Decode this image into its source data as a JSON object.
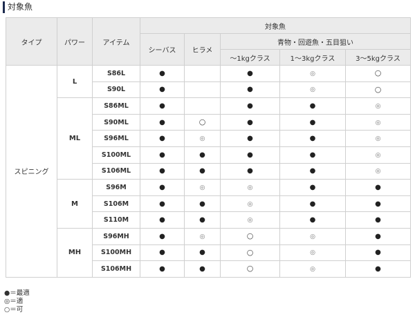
{
  "section_title": "対象魚",
  "header": {
    "type": "タイプ",
    "power": "パワー",
    "item": "アイテム",
    "target": "対象魚",
    "seabass": "シーバス",
    "hirame": "ヒラメ",
    "aomono": "青物・回遊魚・五目狙い",
    "c1": "～1kgクラス",
    "c2": "1～3kgクラス",
    "c3": "3～5kgクラス"
  },
  "symbols": {
    "best": "●",
    "good": "◎",
    "ok": "○"
  },
  "type_label": "スピニング",
  "groups": [
    {
      "power": "L",
      "rows": [
        [
          "S86L",
          "best",
          "",
          "best",
          "good",
          "ok"
        ],
        [
          "S90L",
          "best",
          "",
          "best",
          "good",
          "ok"
        ]
      ]
    },
    {
      "power": "ML",
      "rows": [
        [
          "S86ML",
          "best",
          "",
          "best",
          "best",
          "good"
        ],
        [
          "S90ML",
          "best",
          "ok",
          "best",
          "best",
          "good"
        ],
        [
          "S96ML",
          "best",
          "good",
          "best",
          "best",
          "good"
        ],
        [
          "S100ML",
          "best",
          "best",
          "best",
          "best",
          "good"
        ],
        [
          "S106ML",
          "best",
          "best",
          "best",
          "best",
          "good"
        ]
      ]
    },
    {
      "power": "M",
      "rows": [
        [
          "S96M",
          "best",
          "good",
          "good",
          "best",
          "best"
        ],
        [
          "S106M",
          "best",
          "best",
          "good",
          "best",
          "best"
        ],
        [
          "S110M",
          "best",
          "best",
          "good",
          "best",
          "best"
        ]
      ]
    },
    {
      "power": "MH",
      "rows": [
        [
          "S96MH",
          "best",
          "good",
          "ok",
          "good",
          "best"
        ],
        [
          "S100MH",
          "best",
          "best",
          "ok",
          "good",
          "best"
        ],
        [
          "S106MH",
          "best",
          "best",
          "ok",
          "good",
          "best"
        ]
      ]
    }
  ],
  "legend": [
    {
      "sym": "●",
      "text": "＝最適"
    },
    {
      "sym": "◎",
      "text": "＝適"
    },
    {
      "sym": "○",
      "text": "＝可"
    }
  ]
}
